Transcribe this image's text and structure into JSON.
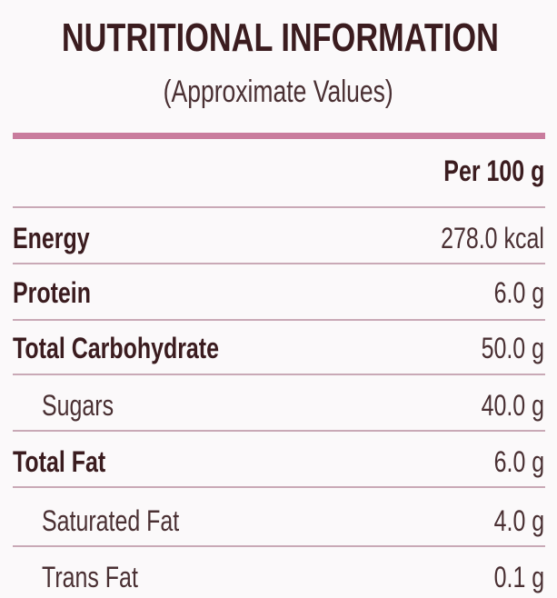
{
  "header": {
    "title": "NUTRITIONAL INFORMATION",
    "subtitle": "(Approximate Values)"
  },
  "table": {
    "column_header": "Per 100 g",
    "rows": [
      [
        "Energy",
        "278.0 kcal"
      ],
      [
        "Protein",
        "6.0 g"
      ],
      [
        "Total Carbohydrate",
        "50.0 g"
      ],
      [
        "Sugars",
        "40.0 g"
      ],
      [
        "Total Fat",
        "6.0 g"
      ],
      [
        "Saturated Fat",
        "4.0 g"
      ],
      [
        "Trans Fat",
        "0.1 g"
      ]
    ]
  }
}
